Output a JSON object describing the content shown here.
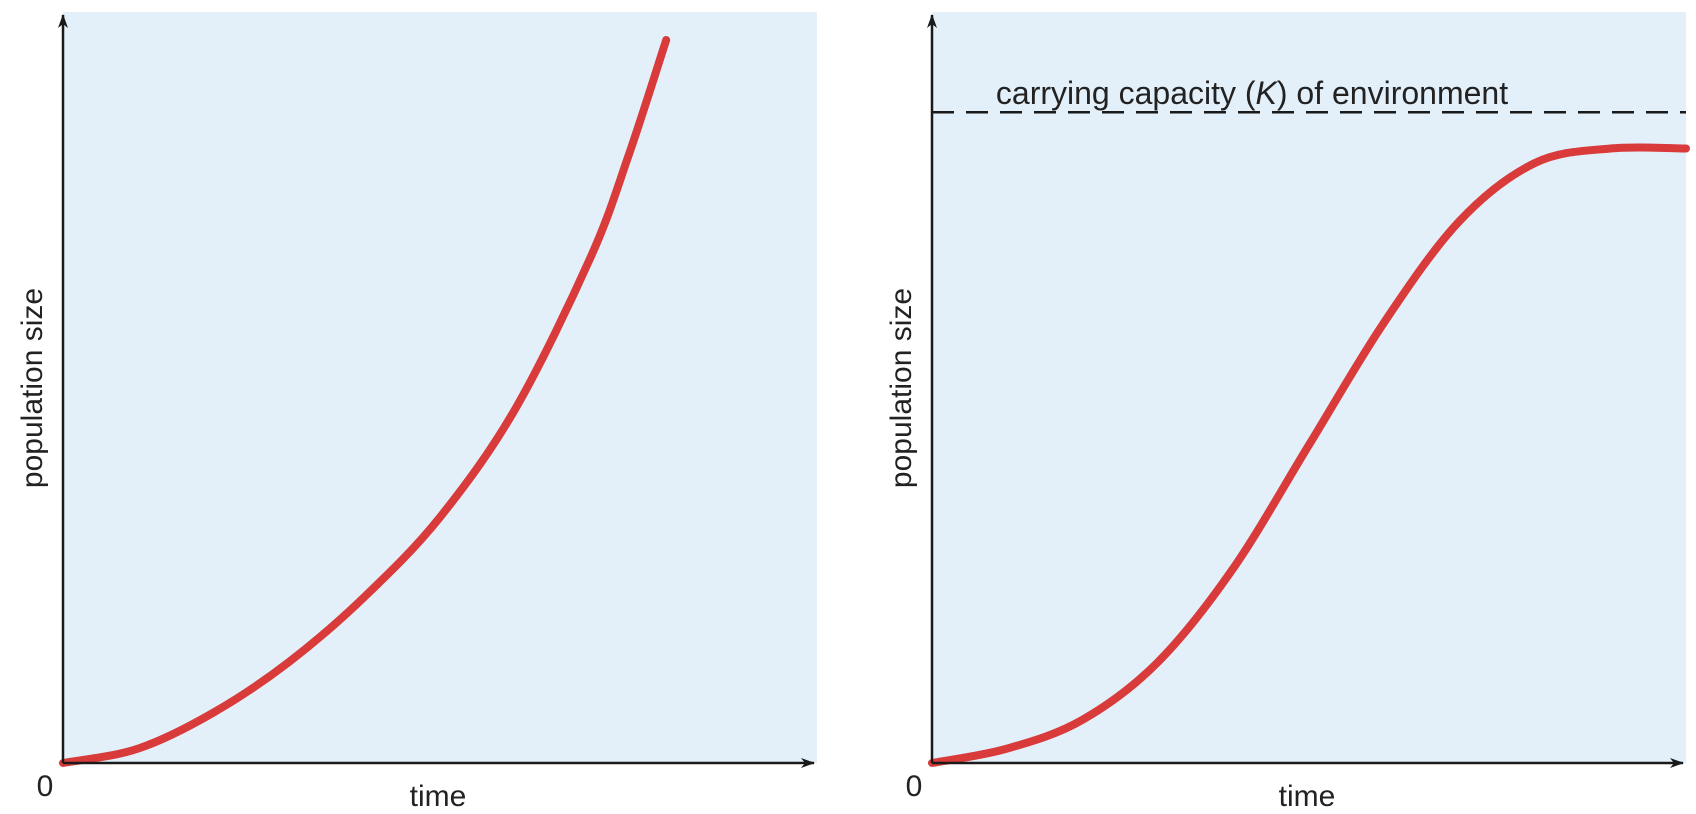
{
  "colors": {
    "panel_background": "#e3f0fa",
    "curve": "#d93a3a",
    "axis": "#1a1a1a",
    "k_line": "#1a1a1a"
  },
  "chart_data": [
    {
      "type": "line",
      "title": "",
      "xlabel": "time",
      "ylabel": "population size",
      "origin_label": "0",
      "xlim": [
        0,
        1
      ],
      "ylim": [
        0,
        1
      ],
      "grid": false,
      "series": [
        {
          "x": [
            0,
            0.1,
            0.2,
            0.3,
            0.4,
            0.5,
            0.6,
            0.7,
            0.75,
            0.8
          ],
          "y": [
            0.0,
            0.02,
            0.07,
            0.14,
            0.23,
            0.34,
            0.49,
            0.7,
            0.84,
            1.0
          ]
        }
      ]
    },
    {
      "type": "line",
      "title": "",
      "xlabel": "time",
      "ylabel": "population size",
      "origin_label": "0",
      "xlim": [
        0,
        1
      ],
      "ylim": [
        0,
        1
      ],
      "grid": false,
      "reference_line": {
        "label_prefix": "carrying capacity (",
        "label_symbol": "K",
        "label_suffix": ") of environment",
        "y": 0.9,
        "style": "dashed"
      },
      "series": [
        {
          "x": [
            0,
            0.1,
            0.2,
            0.3,
            0.4,
            0.5,
            0.6,
            0.7,
            0.8,
            0.9,
            1.0
          ],
          "y": [
            0.0,
            0.02,
            0.06,
            0.14,
            0.27,
            0.44,
            0.61,
            0.75,
            0.83,
            0.85,
            0.85
          ]
        }
      ]
    }
  ]
}
